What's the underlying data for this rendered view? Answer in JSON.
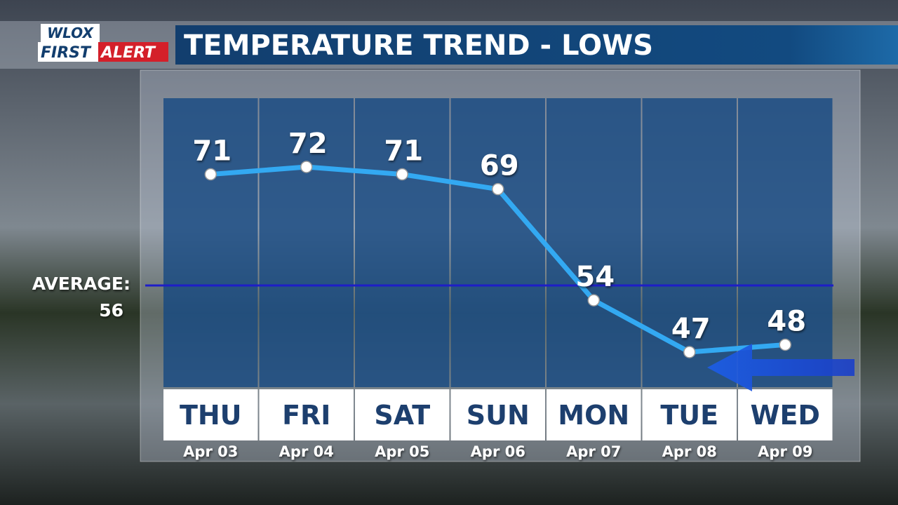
{
  "logo": {
    "top": "WLOX",
    "first": "FIRST",
    "alert": "ALERT"
  },
  "chart_data": {
    "type": "line",
    "title": "TEMPERATURE TREND - LOWS",
    "categories": [
      "THU",
      "FRI",
      "SAT",
      "SUN",
      "MON",
      "TUE",
      "WED"
    ],
    "dates": [
      "Apr 03",
      "Apr 04",
      "Apr 05",
      "Apr 06",
      "Apr 07",
      "Apr 08",
      "Apr 09"
    ],
    "values": [
      71,
      72,
      71,
      69,
      54,
      47,
      48
    ],
    "color": "#33a9f2",
    "average": {
      "label": "AVERAGE:",
      "value": 56,
      "color": "#1e1ec8"
    }
  }
}
